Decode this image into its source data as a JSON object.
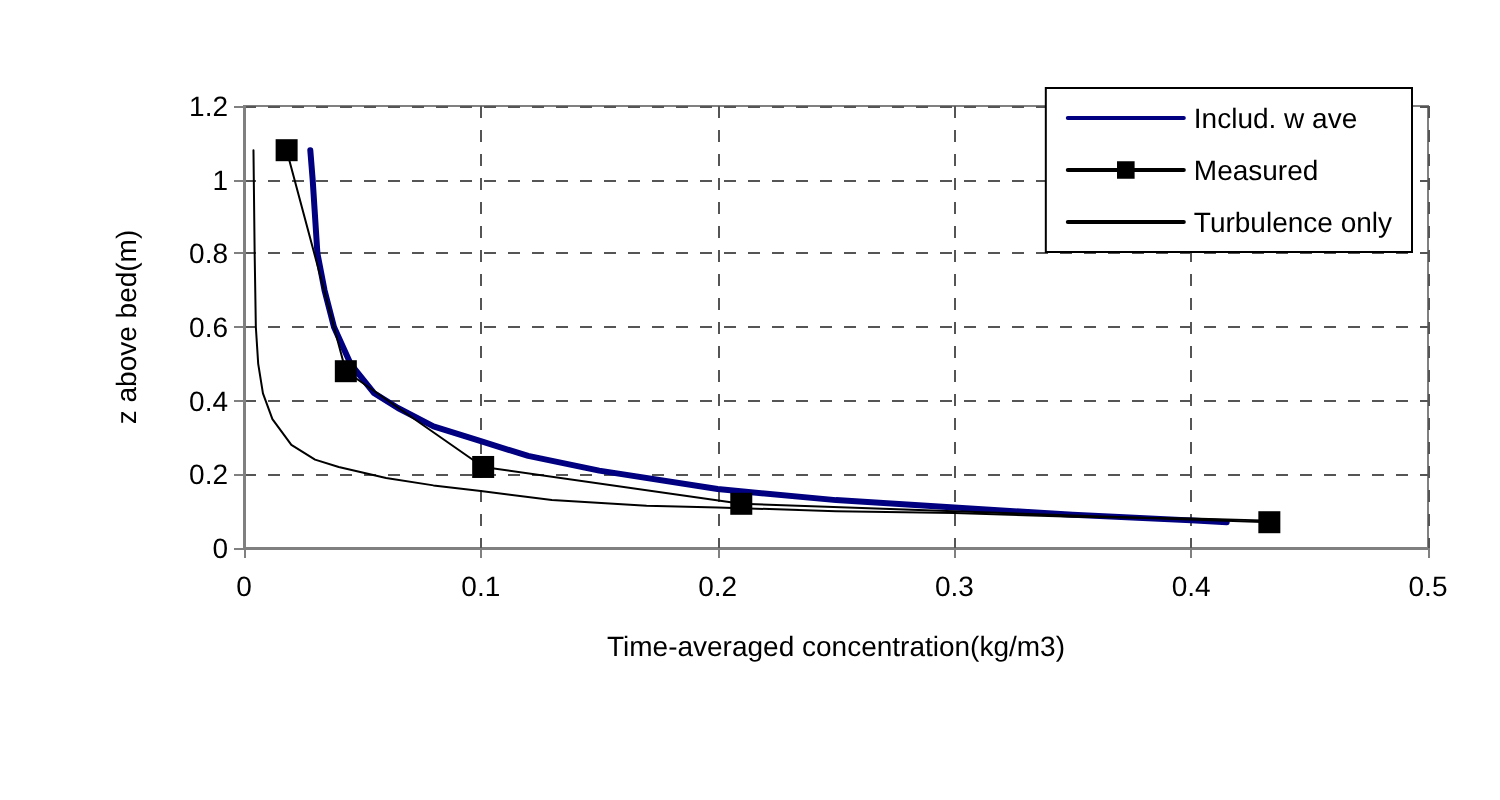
{
  "chart_data": {
    "type": "line",
    "xlabel": "Time-averaged concentration(kg/m3)",
    "ylabel": "z above bed(m)",
    "xlim": [
      0,
      0.5
    ],
    "xticks": [
      0,
      0.1,
      0.2,
      0.3,
      0.4,
      0.5
    ],
    "ylim": [
      0,
      1.2
    ],
    "yticks": [
      0,
      0.2,
      0.4,
      0.6,
      0.8,
      1,
      1.2
    ],
    "grid": true,
    "legend": "top right",
    "line_style": "solid",
    "series": [
      {
        "name": "Includ. w ave",
        "color": "#000080",
        "marker": "none",
        "x": [
          0.028,
          0.029,
          0.031,
          0.034,
          0.038,
          0.045,
          0.055,
          0.065,
          0.08,
          0.1,
          0.12,
          0.15,
          0.2,
          0.25,
          0.3,
          0.35,
          0.4,
          0.415
        ],
        "values": [
          1.08,
          1.0,
          0.8,
          0.7,
          0.6,
          0.5,
          0.42,
          0.38,
          0.33,
          0.29,
          0.25,
          0.21,
          0.16,
          0.13,
          0.11,
          0.09,
          0.075,
          0.07
        ]
      },
      {
        "name": "Measured",
        "color": "#000000",
        "marker": "square",
        "x": [
          0.018,
          0.043,
          0.101,
          0.21,
          0.433
        ],
        "values": [
          1.08,
          0.48,
          0.22,
          0.12,
          0.07
        ]
      },
      {
        "name": "Turbulence only",
        "color": "#000000",
        "marker": "none",
        "x": [
          0.004,
          0.0045,
          0.005,
          0.006,
          0.008,
          0.012,
          0.02,
          0.03,
          0.04,
          0.06,
          0.08,
          0.1,
          0.13,
          0.17,
          0.2,
          0.25,
          0.3,
          0.35,
          0.4,
          0.43
        ],
        "values": [
          1.08,
          0.8,
          0.6,
          0.5,
          0.42,
          0.35,
          0.28,
          0.24,
          0.22,
          0.19,
          0.17,
          0.155,
          0.13,
          0.115,
          0.11,
          0.1,
          0.095,
          0.085,
          0.08,
          0.075
        ]
      }
    ]
  }
}
